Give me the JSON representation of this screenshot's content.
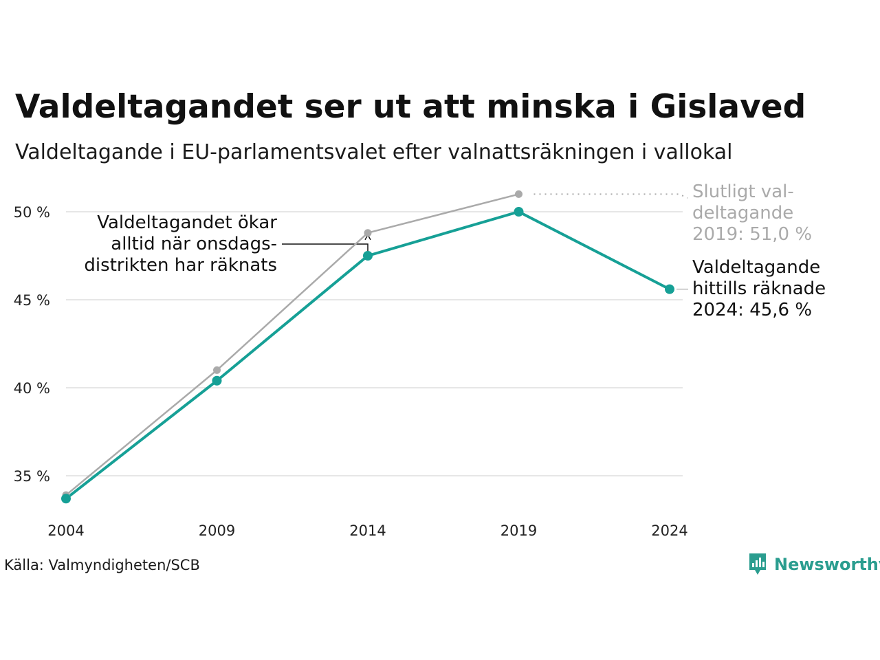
{
  "title": "Valdeltagandet ser ut att minska i Gislaved",
  "subtitle": "Valdeltagande i EU-parlamentsvalet efter valnattsräkningen i vallokal",
  "source": "Källa: Valmyndigheten/SCB",
  "brand": "Newsworthy",
  "colors": {
    "teal": "#16a096",
    "grey": "#aaaaaa",
    "grid": "#e6e6e6"
  },
  "annotations": {
    "left": [
      "Valdeltagandet ökar",
      "alltid när onsdags-",
      "distrikten har räknats"
    ],
    "grey": [
      "Slutligt val-",
      "deltagande",
      "2019: 51,0 %"
    ],
    "teal": [
      "Valdeltagande",
      "hittills räknade",
      "2024: 45,6 %"
    ]
  },
  "chart_data": {
    "type": "line",
    "x": [
      2004,
      2009,
      2014,
      2019,
      2024
    ],
    "x_tick_labels": [
      "2004",
      "2009",
      "2014",
      "2019",
      "2024"
    ],
    "y_ticks": [
      35,
      40,
      45,
      50
    ],
    "y_tick_labels": [
      "35 %",
      "40 %",
      "45 %",
      "50 %"
    ],
    "grid": true,
    "series": [
      {
        "key": "final",
        "color": "#aaaaaa",
        "x": [
          2004,
          2009,
          2014,
          2019
        ],
        "values": [
          33.9,
          41.0,
          48.8,
          51.0
        ]
      },
      {
        "key": "preliminary",
        "color": "#16a096",
        "x": [
          2004,
          2009,
          2014,
          2019,
          2024
        ],
        "values": [
          33.7,
          40.4,
          47.5,
          50.0,
          45.6
        ]
      }
    ]
  }
}
